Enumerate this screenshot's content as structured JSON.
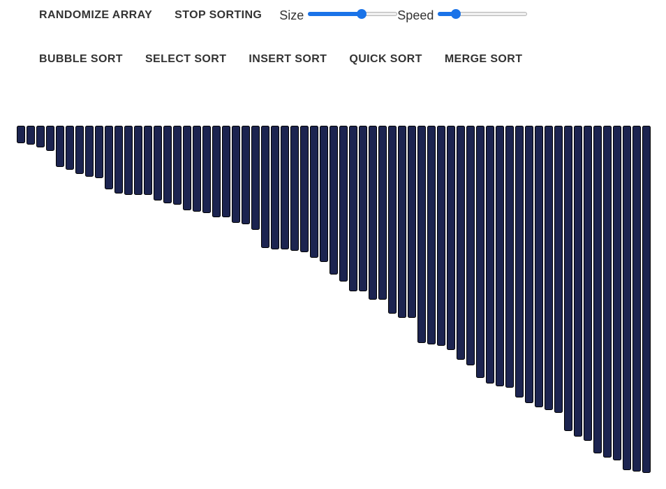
{
  "toolbar": {
    "randomize_label": "RANDOMIZE ARRAY",
    "stop_label": "STOP SORTING",
    "size_label": "Size",
    "size_value": 0.61,
    "speed_label": "Speed",
    "speed_value": 0.16,
    "accent_color": "#1a73e8"
  },
  "algorithms": [
    {
      "id": "bubble",
      "label": "BUBBLE SORT"
    },
    {
      "id": "select",
      "label": "SELECT SORT"
    },
    {
      "id": "insert",
      "label": "INSERT SORT"
    },
    {
      "id": "quick",
      "label": "QUICK SORT"
    },
    {
      "id": "merge",
      "label": "MERGE SORT"
    }
  ],
  "chart_data": {
    "type": "bar",
    "bar_color": "#1c2450",
    "bar_border": "#000000",
    "values": [
      25,
      27,
      31,
      36,
      59,
      63,
      69,
      73,
      75,
      91,
      97,
      99,
      99,
      99,
      107,
      111,
      113,
      121,
      123,
      125,
      131,
      131,
      139,
      141,
      149,
      175,
      177,
      177,
      179,
      181,
      189,
      195,
      213,
      223,
      237,
      237,
      249,
      249,
      269,
      275,
      275,
      311,
      313,
      315,
      321,
      335,
      343,
      361,
      369,
      373,
      375,
      389,
      397,
      403,
      407,
      411,
      437,
      445,
      451,
      469,
      475,
      479,
      493,
      495,
      497
    ],
    "max_value": 497
  }
}
